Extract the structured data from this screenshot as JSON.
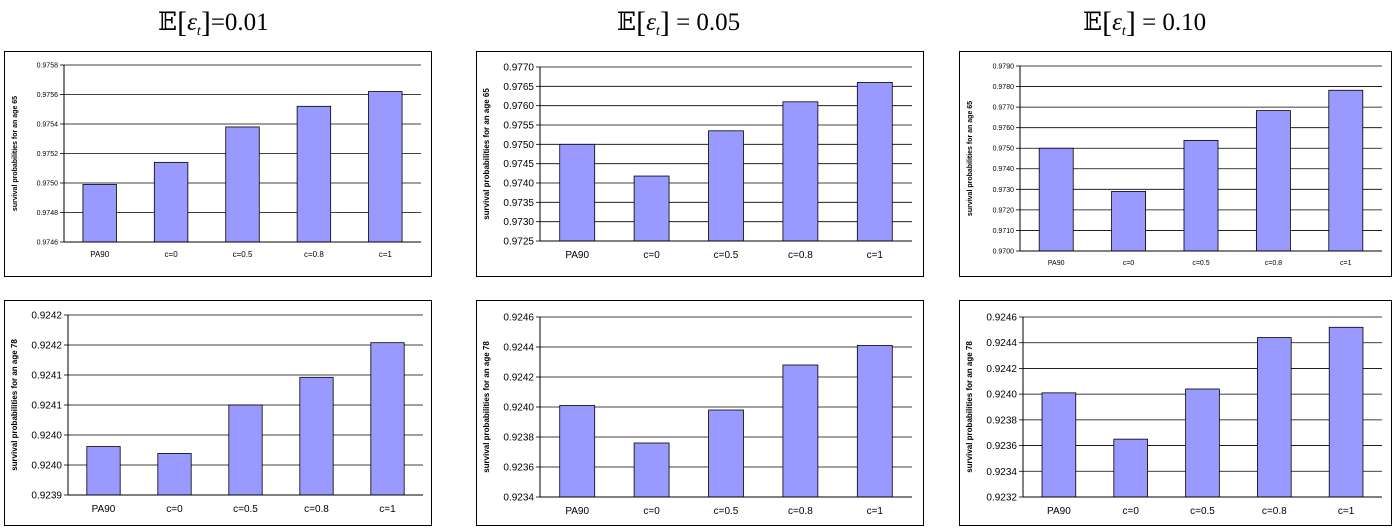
{
  "column_titles": [
    {
      "symbol": "𝔼",
      "variable": "ε",
      "subscript": "t",
      "value": "0.01"
    },
    {
      "symbol": "𝔼",
      "variable": "ε",
      "subscript": "t",
      "value": "0.05"
    },
    {
      "symbol": "𝔼",
      "variable": "ε",
      "subscript": "t",
      "value": "0.10"
    }
  ],
  "colors": {
    "bar_fill": "#9999ff",
    "bar_stroke": "#000000",
    "grid": "#000000",
    "panel_border": "#000000"
  },
  "chart_data": [
    {
      "type": "bar",
      "ylabel": "survival probabilities for an age 65",
      "categories": [
        "PA90",
        "c=0",
        "c=0.5",
        "c=0.8",
        "c=1"
      ],
      "values": [
        0.97499,
        0.97514,
        0.97538,
        0.97552,
        0.97562
      ],
      "ylim": [
        0.9746,
        0.9758
      ],
      "yticks": [
        "0.9746",
        "0.9748",
        "0.9750",
        "0.9752",
        "0.9754",
        "0.9756",
        "0.9758"
      ],
      "grid": true
    },
    {
      "type": "bar",
      "ylabel": "survival probabilities for an age 65",
      "categories": [
        "PA90",
        "c=0",
        "c=0.5",
        "c=0.8",
        "c=1"
      ],
      "values": [
        0.975,
        0.97418,
        0.97535,
        0.9761,
        0.9766
      ],
      "ylim": [
        0.9725,
        0.977
      ],
      "yticks": [
        "0.9725",
        "0.9730",
        "0.9735",
        "0.9740",
        "0.9745",
        "0.9750",
        "0.9755",
        "0.9760",
        "0.9765",
        "0.9770"
      ],
      "grid": true
    },
    {
      "type": "bar",
      "ylabel": "survival probabilities for an age 65",
      "categories": [
        "PA90",
        "c=0",
        "c=0.5",
        "c=0.8",
        "c=1"
      ],
      "values": [
        0.975,
        0.9729,
        0.97538,
        0.97683,
        0.97782
      ],
      "ylim": [
        0.97,
        0.979
      ],
      "yticks": [
        "0.9700",
        "0.9710",
        "0.9720",
        "0.9730",
        "0.9740",
        "0.9750",
        "0.9760",
        "0.9770",
        "0.9780",
        "0.9790"
      ],
      "grid": true
    },
    {
      "type": "bar",
      "ylabel": "survival probabilities for an age 78",
      "categories": [
        "PA90",
        "c=0",
        "c=0.5",
        "c=0.8",
        "c=1"
      ],
      "values": [
        0.92401,
        0.924,
        0.92407,
        0.92411,
        0.92416
      ],
      "ylim": [
        0.92394,
        0.9242
      ],
      "yticks": [
        "0.9239",
        "0.9240",
        "0.9240",
        "0.9241",
        "0.9241",
        "0.9242",
        "0.9242"
      ],
      "grid": true
    },
    {
      "type": "bar",
      "ylabel": "survival probabilities for an age 78",
      "categories": [
        "PA90",
        "c=0",
        "c=0.5",
        "c=0.8",
        "c=1"
      ],
      "values": [
        0.92401,
        0.92376,
        0.92398,
        0.92428,
        0.92441
      ],
      "ylim": [
        0.9234,
        0.9246
      ],
      "yticks": [
        "0.9234",
        "0.9236",
        "0.9238",
        "0.9240",
        "0.9242",
        "0.9244",
        "0.9246"
      ],
      "grid": true
    },
    {
      "type": "bar",
      "ylabel": "survival probabilities for an age 78",
      "categories": [
        "PA90",
        "c=0",
        "c=0.5",
        "c=0.8",
        "c=1"
      ],
      "values": [
        0.92401,
        0.92365,
        0.92404,
        0.92444,
        0.92452
      ],
      "ylim": [
        0.9232,
        0.9246
      ],
      "yticks": [
        "0.9232",
        "0.9234",
        "0.9236",
        "0.9238",
        "0.9240",
        "0.9242",
        "0.9244",
        "0.9246"
      ],
      "grid": true
    }
  ]
}
